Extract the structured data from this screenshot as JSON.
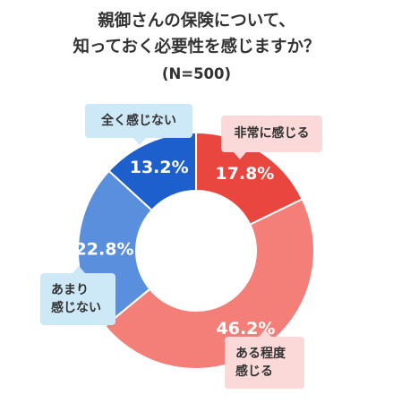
{
  "title": {
    "line1": "親御さんの保険について、",
    "line2": "知っておく必要性を感じますか？",
    "sample": "(N=500)"
  },
  "chart_data": {
    "type": "pie",
    "title": "親御さんの保険について、知っておく必要性を感じますか？",
    "subtitle": "(N=500)",
    "donut": true,
    "start": "top, clockwise",
    "categories": [
      "非常に感じる",
      "ある程度感じる",
      "あまり感じない",
      "全く感じない"
    ],
    "values": [
      17.8,
      46.2,
      22.8,
      13.2
    ],
    "unit": "%",
    "labels": [
      "17.8%",
      "46.2%",
      "22.8%",
      "13.2%"
    ],
    "colors": [
      "#e8463f",
      "#f47f78",
      "#5a8fdd",
      "#1d5fcc"
    ]
  },
  "callouts": {
    "very": "非常に感じる",
    "somewhat_line1": "ある程度",
    "somewhat_line2": "感じる",
    "not_much_line1": "あまり",
    "not_much_line2": "感じない",
    "not_at_all": "全く感じない"
  },
  "colors": {
    "title_text": "#333333",
    "callout_red_bg": "#fbd9d9",
    "callout_blue_bg": "#cde9f8"
  }
}
